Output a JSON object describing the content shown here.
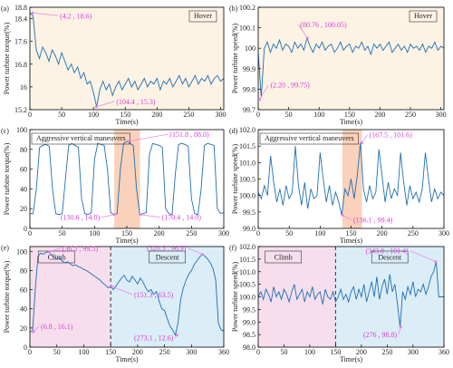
{
  "chart_data": [
    {
      "type": "line",
      "panel": "(a)",
      "xlabel": "Time(s)",
      "ylabel": "Power turbine torque(%)",
      "label_box": "Hover",
      "label_box_corner": "upper right",
      "background": "#fdf3e4",
      "color": "#1f6fb4",
      "x": [
        0,
        5,
        10,
        15,
        20,
        25,
        30,
        35,
        40,
        45,
        50,
        55,
        60,
        65,
        70,
        75,
        80,
        85,
        90,
        95,
        100,
        105,
        110,
        115,
        120,
        125,
        130,
        135,
        140,
        145,
        150,
        155,
        160,
        165,
        170,
        175,
        180,
        185,
        190,
        195,
        200,
        205,
        210,
        215,
        220,
        225,
        230,
        235,
        240,
        245,
        250,
        255,
        260,
        265,
        270,
        275,
        280,
        285,
        290,
        295,
        300,
        305
      ],
      "values": [
        18.6,
        18.5,
        17.3,
        17.0,
        17.4,
        17.2,
        16.9,
        17.3,
        17.1,
        16.8,
        17.2,
        16.9,
        16.6,
        16.8,
        16.5,
        16.7,
        16.3,
        16.5,
        16.1,
        16.2,
        15.8,
        15.3,
        15.9,
        16.2,
        15.9,
        16.1,
        15.7,
        16.0,
        16.2,
        15.9,
        16.1,
        16.3,
        16.0,
        16.2,
        15.9,
        16.1,
        16.3,
        16.0,
        16.2,
        16.1,
        16.3,
        15.9,
        16.2,
        16.1,
        16.3,
        16.0,
        16.2,
        16.4,
        16.1,
        16.3,
        16.0,
        16.2,
        16.4,
        16.1,
        16.3,
        16.2,
        16.4,
        16.1,
        16.3,
        16.4,
        16.2,
        16.3
      ],
      "xlim": [
        0,
        305
      ],
      "ylim": [
        15.2,
        18.8
      ],
      "xticks": [
        0,
        50,
        100,
        150,
        200,
        250,
        300
      ],
      "yticks": [
        15.2,
        16,
        16.8,
        17.6,
        18.4,
        18.8
      ],
      "annotations": [
        {
          "text": "(4.2 , 18.6)",
          "x": 4.2,
          "y": 18.6
        },
        {
          "text": "(104.4 , 15.3)",
          "x": 104.4,
          "y": 15.3
        }
      ]
    },
    {
      "type": "line",
      "panel": "(b)",
      "xlabel": "Time(s)",
      "ylabel": "Power turbine speed(%)",
      "label_box": "Hover",
      "label_box_corner": "upper right",
      "background": "#fdf3e4",
      "color": "#1f6fb4",
      "x": [
        0,
        5,
        10,
        15,
        20,
        25,
        30,
        35,
        40,
        45,
        50,
        55,
        60,
        65,
        70,
        75,
        80,
        85,
        90,
        95,
        100,
        105,
        110,
        115,
        120,
        125,
        130,
        135,
        140,
        145,
        150,
        155,
        160,
        165,
        170,
        175,
        180,
        185,
        190,
        195,
        200,
        205,
        210,
        215,
        220,
        225,
        230,
        235,
        240,
        245,
        250,
        255,
        260,
        265,
        270,
        275,
        280,
        285,
        290,
        295,
        300,
        305
      ],
      "values": [
        99.98,
        99.76,
        100.0,
        100.03,
        99.98,
        100.02,
        100.0,
        100.04,
        99.99,
        100.02,
        100.01,
        99.98,
        100.03,
        100.0,
        100.02,
        99.99,
        100.05,
        100.01,
        99.98,
        100.02,
        100.0,
        100.03,
        99.99,
        100.01,
        100.02,
        99.98,
        100.0,
        100.03,
        99.99,
        100.01,
        100.02,
        99.98,
        100.01,
        100.0,
        100.03,
        99.99,
        100.01,
        99.97,
        100.02,
        100.0,
        100.02,
        99.99,
        100.01,
        100.03,
        99.98,
        100.0,
        100.02,
        99.99,
        100.01,
        99.98,
        100.02,
        100.0,
        100.01,
        99.99,
        100.02,
        99.98,
        100.01,
        100.0,
        100.03,
        99.99,
        100.01,
        100.0
      ],
      "xlim": [
        0,
        305
      ],
      "ylim": [
        99.7,
        100.2
      ],
      "xticks": [
        0,
        50,
        100,
        150,
        200,
        250,
        300
      ],
      "yticks": [
        99.7,
        99.8,
        99.9,
        100,
        100.1,
        100.2
      ],
      "annotations": [
        {
          "text": "(80.76 , 100.05)",
          "x": 80.76,
          "y": 100.05
        },
        {
          "text": "(2.20 , 99.75)",
          "x": 2.2,
          "y": 99.75
        }
      ]
    },
    {
      "type": "line",
      "panel": "(c)",
      "xlabel": "Time(s)",
      "ylabel": "Power turbine torque(%)",
      "label_box": "Aggressive vertical maneuvers",
      "label_box_corner": "upper left",
      "color": "#1f6fb4",
      "x": [
        0,
        5,
        10,
        15,
        20,
        25,
        30,
        35,
        40,
        45,
        50,
        55,
        60,
        65,
        70,
        75,
        80,
        85,
        90,
        95,
        100,
        105,
        110,
        115,
        120,
        125,
        130,
        135,
        140,
        145,
        150,
        155,
        160,
        165,
        170,
        175,
        180,
        185,
        190,
        195,
        200,
        205,
        210,
        215,
        220,
        225,
        230,
        235,
        240,
        245,
        250,
        255,
        260,
        265,
        270,
        275,
        280,
        285,
        290,
        295,
        300
      ],
      "values": [
        15,
        15,
        40,
        82,
        84,
        85,
        83,
        40,
        15,
        14,
        15,
        50,
        84,
        86,
        84,
        82,
        30,
        15,
        14,
        16,
        70,
        86,
        85,
        84,
        60,
        16,
        14,
        15,
        60,
        86,
        88,
        86,
        84,
        40,
        14,
        15,
        16,
        75,
        86,
        85,
        84,
        82,
        20,
        15,
        14,
        55,
        85,
        86,
        85,
        83,
        30,
        15,
        14,
        40,
        84,
        86,
        85,
        84,
        20,
        15,
        16
      ],
      "xlim": [
        0,
        300
      ],
      "ylim": [
        0,
        100
      ],
      "xticks": [
        0,
        50,
        100,
        150,
        200,
        250,
        300
      ],
      "yticks": [
        0,
        20,
        40,
        60,
        80,
        100
      ],
      "regions": [
        {
          "x": [
            130.6,
            170.4
          ],
          "color": "#f9c9ae"
        }
      ],
      "annotations": [
        {
          "text": "(151.8 , 88.0)",
          "x": 151.8,
          "y": 88.0
        },
        {
          "text": "(130.6 , 14.0)",
          "x": 130.6,
          "y": 14.0
        },
        {
          "text": "(170.4 , 14.0)",
          "x": 170.4,
          "y": 14.0
        }
      ]
    },
    {
      "type": "line",
      "panel": "(d)",
      "xlabel": "Time(s)",
      "ylabel": "Power turbine speed(%)",
      "label_box": "Aggressive vertical maneuvers",
      "label_box_corner": "upper left",
      "color": "#1f6fb4",
      "x": [
        0,
        5,
        10,
        15,
        20,
        25,
        30,
        35,
        40,
        45,
        50,
        55,
        60,
        65,
        70,
        75,
        80,
        85,
        90,
        95,
        100,
        105,
        110,
        115,
        120,
        125,
        130,
        135,
        140,
        145,
        150,
        155,
        160,
        165,
        170,
        175,
        180,
        185,
        190,
        195,
        200,
        205,
        210,
        215,
        220,
        225,
        230,
        235,
        240,
        245,
        250,
        255,
        260,
        265,
        270,
        275,
        280,
        285,
        290,
        295,
        300
      ],
      "values": [
        100.1,
        99.9,
        100.3,
        100.0,
        101.2,
        100.4,
        99.8,
        100.2,
        99.7,
        100.3,
        99.9,
        100.1,
        101.5,
        100.3,
        99.7,
        100.4,
        99.6,
        100.2,
        99.9,
        100.0,
        101.3,
        100.5,
        99.8,
        100.3,
        99.7,
        100.1,
        99.8,
        99.4,
        100.2,
        100.0,
        100.5,
        99.9,
        100.6,
        101.6,
        100.2,
        99.8,
        100.3,
        99.9,
        100.1,
        101.4,
        100.6,
        99.8,
        100.4,
        99.9,
        100.2,
        100.0,
        101.3,
        100.4,
        99.7,
        100.3,
        99.9,
        100.1,
        99.8,
        100.2,
        101.3,
        100.5,
        99.8,
        100.2,
        99.9,
        100.1,
        100.0
      ],
      "xlim": [
        0,
        300
      ],
      "ylim": [
        99.0,
        102.0
      ],
      "xticks": [
        0,
        50,
        100,
        150,
        200,
        250,
        300
      ],
      "yticks": [
        {
          "value": 99.0,
          "label": "99.0"
        },
        99.5,
        {
          "value": 100.0,
          "label": "100.0"
        },
        100.5,
        {
          "value": 101.0,
          "label": "101.0"
        },
        101.5,
        {
          "value": 102.0,
          "label": "102.0"
        }
      ],
      "regions": [
        {
          "x": [
            136.1,
            167.5
          ],
          "color": "#f9c9ae"
        }
      ],
      "annotations": [
        {
          "text": "(167.5 , 101.6)",
          "x": 167.5,
          "y": 101.6
        },
        {
          "text": "(136.1 , 99.4)",
          "x": 136.1,
          "y": 99.4
        }
      ]
    },
    {
      "type": "line",
      "panel": "(e)",
      "xlabel": "Time(s)",
      "ylabel": "Power turbine torque(%)",
      "color": "#1f6fb4",
      "x": [
        0,
        5,
        10,
        15,
        20,
        25,
        30,
        35,
        40,
        45,
        50,
        55,
        60,
        65,
        70,
        75,
        80,
        85,
        90,
        95,
        100,
        105,
        110,
        115,
        120,
        125,
        130,
        135,
        140,
        145,
        150,
        155,
        160,
        165,
        170,
        175,
        180,
        185,
        190,
        195,
        200,
        205,
        210,
        215,
        220,
        225,
        230,
        235,
        240,
        245,
        250,
        255,
        260,
        265,
        270,
        275,
        280,
        285,
        290,
        295,
        300,
        305,
        310,
        315,
        320,
        325,
        330,
        335,
        340,
        345,
        350,
        355,
        360
      ],
      "values": [
        16.1,
        16.5,
        60,
        95,
        98,
        97,
        99,
        99.5,
        96,
        94,
        92,
        93,
        90,
        88,
        89,
        87,
        85,
        86,
        84,
        83,
        81,
        80,
        78,
        76,
        74,
        72,
        70,
        67,
        65,
        62,
        63.5,
        60,
        64,
        68,
        72,
        75,
        70,
        68,
        74,
        70,
        66,
        72,
        68,
        62,
        58,
        60,
        55,
        58,
        48,
        40,
        38,
        30,
        22,
        18,
        12.6,
        25,
        50,
        62,
        70,
        76,
        80,
        86,
        90,
        94,
        96.9,
        95,
        92,
        88,
        82,
        70,
        25,
        18,
        17
      ],
      "xlim": [
        0,
        360
      ],
      "ylim": [
        0,
        105
      ],
      "xticks": [
        0,
        50,
        100,
        150,
        200,
        250,
        300,
        360
      ],
      "yticks": [
        0,
        20,
        40,
        60,
        80,
        100
      ],
      "regions": [
        {
          "x": [
            0,
            150
          ],
          "color": "#f4d8ea",
          "label": "Climb"
        },
        {
          "x": [
            150,
            360
          ],
          "color": "#d5eaf5",
          "label": "Descent"
        }
      ],
      "annotations": [
        {
          "text": "(36.5 , 99.5)",
          "x": 36.5,
          "y": 99.5
        },
        {
          "text": "(6.8 , 16.1)",
          "x": 6.8,
          "y": 16.1
        },
        {
          "text": "(151.3 , 63.5)",
          "x": 151.3,
          "y": 63.5
        },
        {
          "text": "(320.3 , 96.9)",
          "x": 320.3,
          "y": 96.9
        },
        {
          "text": "(273.1 , 12.6)",
          "x": 273.1,
          "y": 12.6
        }
      ]
    },
    {
      "type": "line",
      "panel": "(f)",
      "xlabel": "Time(s)",
      "ylabel": "Power turbine speed(%)",
      "color": "#1f6fb4",
      "x": [
        0,
        5,
        10,
        15,
        20,
        25,
        30,
        35,
        40,
        45,
        50,
        55,
        60,
        65,
        70,
        75,
        80,
        85,
        90,
        95,
        100,
        105,
        110,
        115,
        120,
        125,
        130,
        135,
        140,
        145,
        150,
        155,
        160,
        165,
        170,
        175,
        180,
        185,
        190,
        195,
        200,
        205,
        210,
        215,
        220,
        225,
        230,
        235,
        240,
        245,
        250,
        255,
        260,
        265,
        270,
        275,
        280,
        285,
        290,
        295,
        300,
        305,
        310,
        315,
        320,
        325,
        330,
        335,
        340,
        345,
        350,
        355,
        360
      ],
      "values": [
        100.0,
        100.2,
        99.9,
        100.3,
        100.1,
        99.8,
        100.4,
        100.0,
        100.2,
        99.9,
        100.3,
        100.1,
        99.8,
        100.2,
        100.5,
        99.9,
        100.1,
        100.3,
        99.8,
        100.2,
        100.0,
        100.4,
        99.9,
        100.1,
        100.2,
        99.7,
        100.3,
        100.0,
        99.9,
        100.2,
        99.8,
        100.0,
        100.3,
        99.9,
        100.1,
        99.8,
        100.2,
        100.4,
        99.9,
        100.3,
        100.0,
        100.5,
        99.8,
        100.2,
        100.6,
        100.0,
        100.8,
        99.9,
        100.4,
        100.7,
        100.1,
        100.9,
        100.2,
        100.5,
        99.7,
        98.8,
        100.2,
        99.9,
        100.4,
        100.1,
        100.6,
        100.0,
        100.3,
        100.2,
        100.5,
        100.1,
        100.4,
        100.8,
        101.0,
        101.4,
        100.0,
        100.0,
        100.0
      ],
      "xlim": [
        0,
        360
      ],
      "ylim": [
        98.0,
        102.0
      ],
      "xticks": [
        0,
        50,
        100,
        150,
        200,
        250,
        300,
        360
      ],
      "yticks": [
        {
          "value": 98.0,
          "label": "98.0"
        },
        98.5,
        {
          "value": 99.0,
          "label": "99.0"
        },
        99.5,
        {
          "value": 100.0,
          "label": "100.0"
        },
        100.5,
        {
          "value": 101.0,
          "label": "101.0"
        },
        101.5,
        {
          "value": 102.0,
          "label": "102.0"
        }
      ],
      "regions": [
        {
          "x": [
            0,
            150
          ],
          "color": "#f4d8ea",
          "label": "Climb"
        },
        {
          "x": [
            150,
            360
          ],
          "color": "#d5eaf5",
          "label": "Descent"
        }
      ],
      "annotations": [
        {
          "text": "(343.8 , 101.4)",
          "x": 343.8,
          "y": 101.4
        },
        {
          "text": "(276 , 98.8)",
          "x": 276,
          "y": 98.8
        }
      ]
    }
  ]
}
